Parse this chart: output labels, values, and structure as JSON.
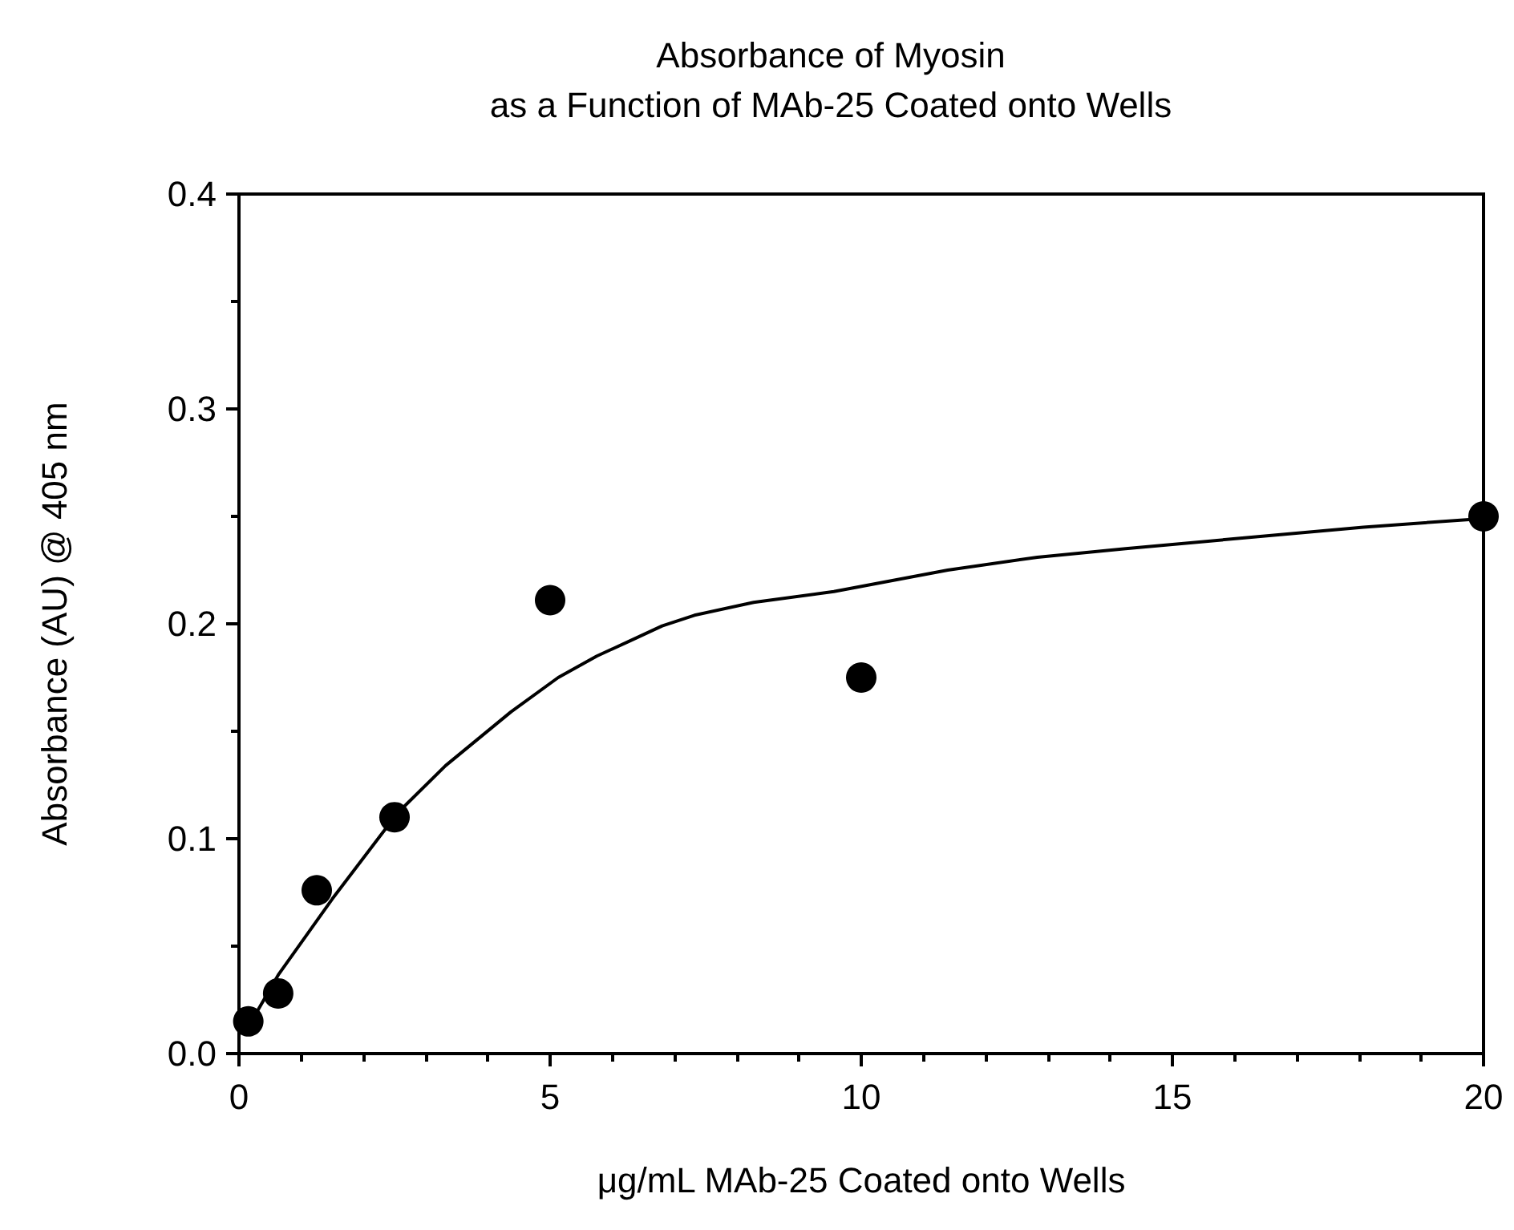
{
  "chart_data": {
    "type": "scatter",
    "title": "Absorbance of Myosin\nas a Function of MAb-25 Coated onto Wells",
    "xlabel": "μg/mL MAb-25 Coated onto Wells",
    "ylabel": "Absorbance (AU) @ 405 nm",
    "xlim": [
      0,
      20
    ],
    "xticks": [
      0,
      {
        "value": 1,
        "label": null
      },
      {
        "value": 2,
        "label": null
      },
      {
        "value": 3,
        "label": null
      },
      {
        "value": 4,
        "label": null
      },
      5,
      {
        "value": 6,
        "label": null
      },
      {
        "value": 7,
        "label": null
      },
      {
        "value": 8,
        "label": null
      },
      {
        "value": 9,
        "label": null
      },
      10,
      {
        "value": 11,
        "label": null
      },
      {
        "value": 12,
        "label": null
      },
      {
        "value": 13,
        "label": null
      },
      {
        "value": 14,
        "label": null
      },
      15,
      {
        "value": 16,
        "label": null
      },
      {
        "value": 17,
        "label": null
      },
      {
        "value": 18,
        "label": null
      },
      {
        "value": 19,
        "label": null
      },
      20
    ],
    "ylim": [
      0,
      0.4
    ],
    "yticks": [
      {
        "value": 0,
        "label": "0.0"
      },
      {
        "value": 0.05,
        "label": null
      },
      0.1,
      {
        "value": 0.15,
        "label": null
      },
      0.2,
      {
        "value": 0.25,
        "label": null
      },
      0.3,
      {
        "value": 0.35,
        "label": null
      },
      0.4
    ],
    "series": [
      {
        "color": "#000000",
        "marker": "circle",
        "x": [
          0.15,
          0.63,
          1.25,
          2.5,
          5,
          10,
          20
        ],
        "values": [
          0.015,
          0.028,
          0.076,
          0.11,
          0.211,
          0.175,
          0.25
        ]
      },
      {
        "type": "line",
        "color": "#000000",
        "marker": "none",
        "line_style": "solid",
        "x": [
          0.15,
          0.26,
          0.64,
          1.5,
          2.55,
          3.32,
          4.37,
          5.13,
          5.75,
          6.28,
          6.8,
          7.32,
          8.27,
          9.56,
          11.39,
          12.83,
          14.25,
          16.16,
          18.07,
          20
        ],
        "values": [
          0.013,
          0.018,
          0.037,
          0.072,
          0.112,
          0.134,
          0.159,
          0.175,
          0.185,
          0.192,
          0.199,
          0.204,
          0.21,
          0.215,
          0.225,
          0.231,
          0.235,
          0.24,
          0.245,
          0.249
        ]
      }
    ]
  }
}
